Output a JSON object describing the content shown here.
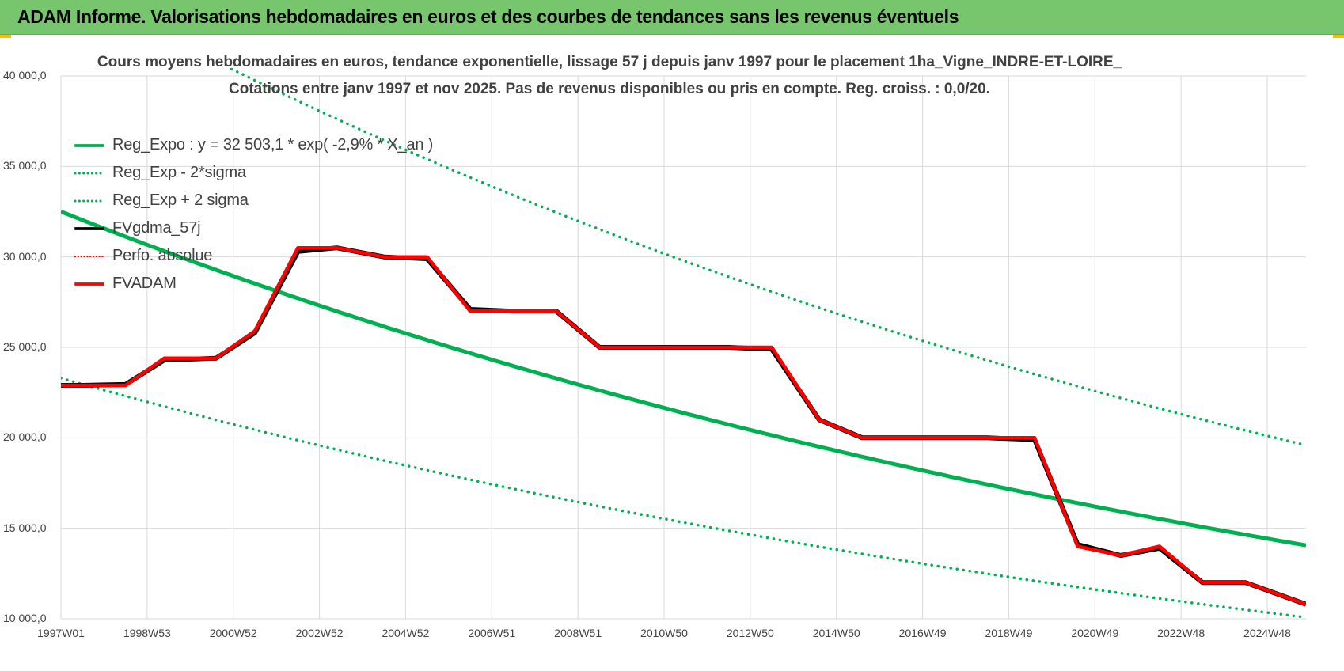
{
  "banner": {
    "title": "ADAM Informe. Valorisations hebdomadaires en euros et des courbes de tendances sans les revenus éventuels"
  },
  "colors": {
    "banner_bg": "#77c66e",
    "green": "#00b050",
    "black": "#000000",
    "red": "#ff0000",
    "grid": "#d9d9d9"
  },
  "chart_data": {
    "type": "line",
    "title": "Cours moyens hebdomadaires en euros, tendance exponentielle, lissage 57 j depuis janv 1997 pour le placement 1ha_Vigne_INDRE-ET-LOIRE_",
    "subtitle": "Cotations entre janv 1997 et nov 2025. Pas de revenus disponibles ou pris en compte. Reg. croiss. : 0,0/20.",
    "ylim": [
      10000,
      40000
    ],
    "xlim": [
      1997.0,
      2025.9
    ],
    "y_ticks": [
      {
        "value": 10000,
        "label": "10 000,0"
      },
      {
        "value": 15000,
        "label": "15 000,0"
      },
      {
        "value": 20000,
        "label": "20 000,0"
      },
      {
        "value": 25000,
        "label": "25 000,0"
      },
      {
        "value": 30000,
        "label": "30 000,0"
      },
      {
        "value": 35000,
        "label": "35 000,0"
      },
      {
        "value": 40000,
        "label": "40 000,0"
      }
    ],
    "x_ticks": [
      {
        "value": 1997.0,
        "label": "1997W01"
      },
      {
        "value": 1999.0,
        "label": "1998W53"
      },
      {
        "value": 2001.0,
        "label": "2000W52"
      },
      {
        "value": 2003.0,
        "label": "2002W52"
      },
      {
        "value": 2005.0,
        "label": "2004W52"
      },
      {
        "value": 2007.0,
        "label": "2006W51"
      },
      {
        "value": 2009.0,
        "label": "2008W51"
      },
      {
        "value": 2011.0,
        "label": "2010W50"
      },
      {
        "value": 2013.0,
        "label": "2012W50"
      },
      {
        "value": 2015.0,
        "label": "2014W50"
      },
      {
        "value": 2017.0,
        "label": "2016W49"
      },
      {
        "value": 2019.0,
        "label": "2018W49"
      },
      {
        "value": 2021.0,
        "label": "2020W49"
      },
      {
        "value": 2023.0,
        "label": "2022W48"
      },
      {
        "value": 2025.0,
        "label": "2024W48"
      }
    ],
    "series": [
      {
        "name": "Reg_Expo : y = 32 503,1 * exp( -2,9% * X_an )",
        "style": "solid-green",
        "formula": {
          "a": 32503.1,
          "rate": -0.029
        }
      },
      {
        "name": "Reg_Exp - 2*sigma",
        "style": "dotted-green",
        "formula": {
          "a": 23300,
          "rate": -0.029
        }
      },
      {
        "name": "Reg_Exp + 2 sigma",
        "style": "dotted-green",
        "formula": {
          "a": 45300,
          "rate": -0.029
        }
      },
      {
        "name": "FVgdma_57j",
        "style": "solid-black",
        "points": [
          [
            1997.0,
            22900
          ],
          [
            1997.5,
            22900
          ],
          [
            1998.5,
            22950
          ],
          [
            1999.4,
            24300
          ],
          [
            2000.6,
            24400
          ],
          [
            2001.5,
            25800
          ],
          [
            2002.5,
            30300
          ],
          [
            2003.4,
            30500
          ],
          [
            2004.5,
            30000
          ],
          [
            2005.5,
            29900
          ],
          [
            2006.5,
            27100
          ],
          [
            2007.5,
            27000
          ],
          [
            2008.5,
            27000
          ],
          [
            2009.5,
            25000
          ],
          [
            2010.5,
            25000
          ],
          [
            2012.5,
            25000
          ],
          [
            2013.5,
            24900
          ],
          [
            2014.6,
            21000
          ],
          [
            2015.6,
            20000
          ],
          [
            2016.5,
            20000
          ],
          [
            2018.5,
            20000
          ],
          [
            2019.6,
            19900
          ],
          [
            2020.6,
            14100
          ],
          [
            2021.6,
            13500
          ],
          [
            2022.5,
            13900
          ],
          [
            2023.5,
            12000
          ],
          [
            2024.5,
            12000
          ],
          [
            2025.9,
            10800
          ]
        ]
      },
      {
        "name": "Perfo. absolue",
        "style": "dotted-red",
        "points": []
      },
      {
        "name": "FVADAM",
        "style": "solid-red",
        "points": [
          [
            1997.0,
            22900
          ],
          [
            1997.5,
            22900
          ],
          [
            1998.5,
            22900
          ],
          [
            1999.4,
            24400
          ],
          [
            2000.6,
            24400
          ],
          [
            2001.5,
            25900
          ],
          [
            2002.5,
            30500
          ],
          [
            2003.4,
            30500
          ],
          [
            2004.5,
            30000
          ],
          [
            2005.5,
            30000
          ],
          [
            2006.5,
            27000
          ],
          [
            2007.5,
            27000
          ],
          [
            2008.5,
            27000
          ],
          [
            2009.5,
            25000
          ],
          [
            2010.5,
            25000
          ],
          [
            2012.5,
            25000
          ],
          [
            2013.5,
            25000
          ],
          [
            2014.6,
            21000
          ],
          [
            2015.6,
            20000
          ],
          [
            2016.5,
            20000
          ],
          [
            2018.5,
            20000
          ],
          [
            2019.6,
            20000
          ],
          [
            2020.6,
            14000
          ],
          [
            2021.6,
            13500
          ],
          [
            2022.5,
            14000
          ],
          [
            2023.5,
            12000
          ],
          [
            2024.5,
            12000
          ],
          [
            2025.9,
            10800
          ]
        ]
      }
    ]
  }
}
